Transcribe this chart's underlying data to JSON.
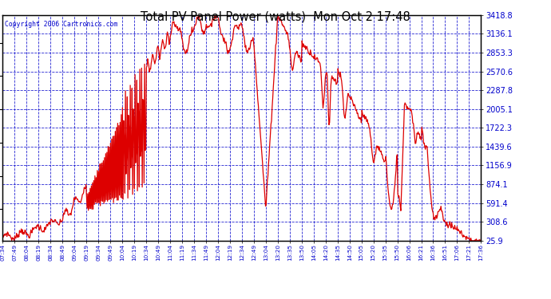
{
  "title": "Total PV Panel Power (watts)  Mon Oct 2 17:48",
  "copyright": "Copyright 2006 Cartronics.com",
  "line_color": "#dd0000",
  "grid_color": "#0000cc",
  "tick_label_color": "#0000cc",
  "ylabel_right": [
    "25.9",
    "308.6",
    "591.4",
    "874.1",
    "1156.9",
    "1439.6",
    "1722.3",
    "2005.1",
    "2287.8",
    "2570.6",
    "2853.3",
    "3136.1",
    "3418.8"
  ],
  "y_values": [
    25.9,
    308.6,
    591.4,
    874.1,
    1156.9,
    1439.6,
    1722.3,
    2005.1,
    2287.8,
    2570.6,
    2853.3,
    3136.1,
    3418.8
  ],
  "ylim": [
    25.9,
    3418.8
  ],
  "x_tick_labels": [
    "07:34",
    "07:49",
    "08:04",
    "08:19",
    "08:34",
    "08:49",
    "09:04",
    "09:19",
    "09:34",
    "09:49",
    "10:04",
    "10:19",
    "10:34",
    "10:49",
    "11:04",
    "11:19",
    "11:34",
    "11:49",
    "12:04",
    "12:19",
    "12:34",
    "12:49",
    "13:04",
    "13:20",
    "13:35",
    "13:50",
    "14:05",
    "14:20",
    "14:35",
    "14:50",
    "15:05",
    "15:20",
    "15:35",
    "15:50",
    "16:06",
    "16:21",
    "16:36",
    "16:51",
    "17:06",
    "17:21",
    "17:36"
  ],
  "n_ticks": 41
}
